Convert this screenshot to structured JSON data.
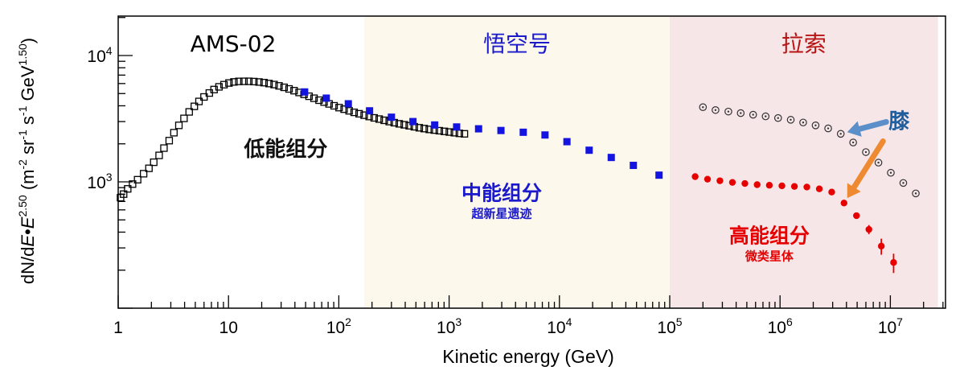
{
  "chart_data": {
    "type": "scatter",
    "title": "",
    "xlabel": "Kinetic energy (GeV)",
    "ylabel": {
      "parts": [
        "dN/d",
        "E",
        "•",
        "E",
        "2.50",
        " (m",
        "-2",
        " sr",
        "-1",
        " s",
        "-1",
        " GeV",
        "1.50",
        ")"
      ]
    },
    "xscale": "log",
    "yscale": "log",
    "xlim": [
      1,
      30000000
    ],
    "ylim": [
      100,
      20000
    ],
    "x_ticks": [
      {
        "value": 1,
        "base": "1",
        "exp": ""
      },
      {
        "value": 10,
        "base": "10",
        "exp": ""
      },
      {
        "value": 100,
        "base": "10",
        "exp": "2"
      },
      {
        "value": 1000,
        "base": "10",
        "exp": "3"
      },
      {
        "value": 10000,
        "base": "10",
        "exp": "4"
      },
      {
        "value": 100000,
        "base": "10",
        "exp": "5"
      },
      {
        "value": 1000000,
        "base": "10",
        "exp": "6"
      },
      {
        "value": 10000000,
        "base": "10",
        "exp": "7"
      }
    ],
    "y_ticks": [
      {
        "value": 1000,
        "base": "10",
        "exp": "3"
      },
      {
        "value": 10000,
        "base": "10",
        "exp": "4"
      }
    ],
    "regions": [
      {
        "name": "AMS-02",
        "x_range": [
          1,
          170
        ],
        "fill": "#ffffff",
        "label_color": "#000000"
      },
      {
        "name": "悟空号",
        "x_range": [
          170,
          100000
        ],
        "fill": "#fdf8ec",
        "label_color": "#1a1acc"
      },
      {
        "name": "拉索",
        "x_range": [
          100000,
          27000000
        ],
        "fill": "#f7e6e8",
        "label_color": "#b81414"
      }
    ],
    "series": [
      {
        "marker": "open-square",
        "color": "#000000",
        "x": [
          1.05,
          1.12,
          1.22,
          1.35,
          1.5,
          1.7,
          1.9,
          2.1,
          2.35,
          2.6,
          2.9,
          3.2,
          3.55,
          3.95,
          4.4,
          4.9,
          5.4,
          6.0,
          6.7,
          7.4,
          8.2,
          9.1,
          10.1,
          11.2,
          12.4,
          13.8,
          15.3,
          17.0,
          18.9,
          21.0,
          23.3,
          25.9,
          28.7,
          31.9,
          35.4,
          39.3,
          43.6,
          48.4,
          53.7,
          59.6,
          66.2,
          73.5,
          81.6,
          90.6,
          100.6,
          111.7,
          124,
          137.7,
          152.8,
          169.7,
          188.4,
          209.2,
          232.3,
          257.9,
          286.4,
          318,
          353,
          392,
          435,
          483,
          536,
          595,
          661,
          734,
          815,
          905,
          1005,
          1116,
          1239,
          1376
        ],
        "y": [
          750,
          800,
          880,
          960,
          1040,
          1160,
          1280,
          1430,
          1620,
          1850,
          2120,
          2450,
          2800,
          3180,
          3580,
          3960,
          4330,
          4700,
          5050,
          5380,
          5650,
          5880,
          6060,
          6180,
          6240,
          6250,
          6250,
          6220,
          6170,
          6100,
          6000,
          5890,
          5750,
          5600,
          5440,
          5270,
          5100,
          4930,
          4760,
          4590,
          4430,
          4280,
          4140,
          4000,
          3870,
          3760,
          3650,
          3550,
          3460,
          3370,
          3290,
          3210,
          3140,
          3070,
          3000,
          2940,
          2880,
          2830,
          2780,
          2730,
          2680,
          2640,
          2600,
          2570,
          2540,
          2510,
          2480,
          2450,
          2420,
          2400
        ]
      },
      {
        "marker": "filled-square",
        "color": "#1414e0",
        "x": [
          49,
          77,
          122,
          190,
          300,
          470,
          740,
          1170,
          1850,
          2950,
          4700,
          7400,
          11700,
          18600,
          29500,
          46800,
          80000
        ],
        "y": [
          5150,
          4600,
          4150,
          3650,
          3250,
          3000,
          2820,
          2720,
          2630,
          2550,
          2470,
          2350,
          2080,
          1780,
          1560,
          1350,
          1130
        ]
      },
      {
        "marker": "dotted-circle",
        "color": "#333333",
        "x": [
          200000,
          260000,
          340000,
          440000,
          570000,
          740000,
          960000,
          1250000,
          1620000,
          2100000,
          2730000,
          3550000,
          4600000,
          6000000,
          7800000,
          10100000,
          13100000,
          17000000
        ],
        "y": [
          3900,
          3700,
          3600,
          3500,
          3400,
          3300,
          3200,
          3100,
          2950,
          2800,
          2650,
          2400,
          2050,
          1720,
          1420,
          1180,
          980,
          810
        ]
      },
      {
        "marker": "filled-circle",
        "color": "#e60000",
        "x": [
          170000,
          220000,
          285000,
          370000,
          480000,
          620000,
          800000,
          1040000,
          1350000,
          1750000,
          2270000,
          2940000,
          3800000,
          4930000,
          6390000,
          8280000,
          10700000
        ],
        "y": [
          1100,
          1050,
          1020,
          990,
          970,
          950,
          940,
          930,
          920,
          910,
          880,
          830,
          680,
          540,
          420,
          310,
          230
        ],
        "err": [
          0,
          0,
          0,
          0,
          0,
          0,
          0,
          0,
          0,
          0,
          0,
          0,
          0,
          25,
          35,
          45,
          40
        ]
      }
    ],
    "annotations": [
      {
        "text": "低能组分",
        "sub": "",
        "color": "#111111",
        "x": 33,
        "y": 1600
      },
      {
        "text": "中能组分",
        "sub": "超新星遗迹",
        "color": "#1a1acc",
        "x": 3000,
        "y": 720
      },
      {
        "text": "高能组分",
        "sub": "微类星体",
        "color": "#e60000",
        "x": 800000,
        "y": 330
      },
      {
        "text": "膝",
        "sub": "",
        "color": "#1f5fa0",
        "x": 12000000,
        "y": 2650
      }
    ]
  }
}
